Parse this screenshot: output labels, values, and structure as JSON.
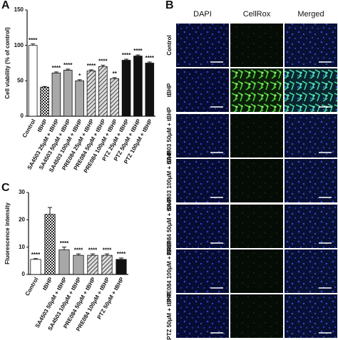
{
  "chart_data": [
    {
      "type": "bar",
      "panel_label": "A",
      "ylabel": "Cell viability (% of control)",
      "categories": [
        "Control",
        "tBHP",
        "SA4503 25μM + tBHP",
        "SA4503 50μM + tBHP",
        "SA4503 100μM + tBHP",
        "PRE084 25μM + tBHP",
        "PRE084 50μM + tBHP",
        "PRE084 100μM + tBHP",
        "PTZ 25μM + tBHP",
        "PTZ 50μM + tBHP",
        "PTZ 100μM + tBHP"
      ],
      "values": [
        100,
        41,
        61,
        65,
        50,
        64,
        70,
        53,
        79,
        85,
        75
      ],
      "errors": [
        2,
        1,
        1.5,
        1.5,
        1.5,
        1.5,
        2,
        1.5,
        1.5,
        1.5,
        1.5
      ],
      "annotations": [
        "****",
        null,
        "****",
        "****",
        "*",
        "****",
        "****",
        "**",
        "****",
        "****",
        "****"
      ],
      "bar_styles": [
        "white",
        "checker",
        "gray",
        "gray",
        "gray",
        "hatch",
        "hatch",
        "hatch",
        "black",
        "black",
        "black"
      ],
      "ylim": [
        0,
        150
      ],
      "yticks": [
        0,
        50,
        100,
        150
      ]
    },
    {
      "type": "bar",
      "panel_label": "C",
      "ylabel": "Fluorescence intensity",
      "categories": [
        "Control",
        "tBHP",
        "SA4503 50μM + tBHP",
        "SA4503 100μM + tBHP",
        "PRE084 50μM + tBHP",
        "PRE084 100μM + tBHP",
        "PTZ 50μM + tBHP"
      ],
      "values": [
        5.5,
        22,
        9,
        7,
        7,
        7,
        5.5
      ],
      "errors": [
        0.3,
        2.5,
        1,
        0.5,
        0.5,
        0.5,
        0.5
      ],
      "annotations": [
        "****",
        null,
        "****",
        "****",
        "****",
        "****",
        "****"
      ],
      "bar_styles": [
        "white",
        "checker",
        "gray",
        "gray",
        "hatch",
        "hatch",
        "black"
      ],
      "ylim": [
        0,
        30
      ],
      "yticks": [
        0,
        10,
        20,
        30
      ]
    }
  ],
  "panel_b": {
    "label": "B",
    "columns": [
      "DAPI",
      "CellRox",
      "Merged"
    ],
    "rows": [
      "Control",
      "tBHP",
      "SA4503 50μM + tBHP",
      "SA4503 100μM + tBHP",
      "PRE084 50μM + tBHP",
      "PRE084 100μM + tBHP",
      "PTZ 50μM + tBHP"
    ]
  }
}
